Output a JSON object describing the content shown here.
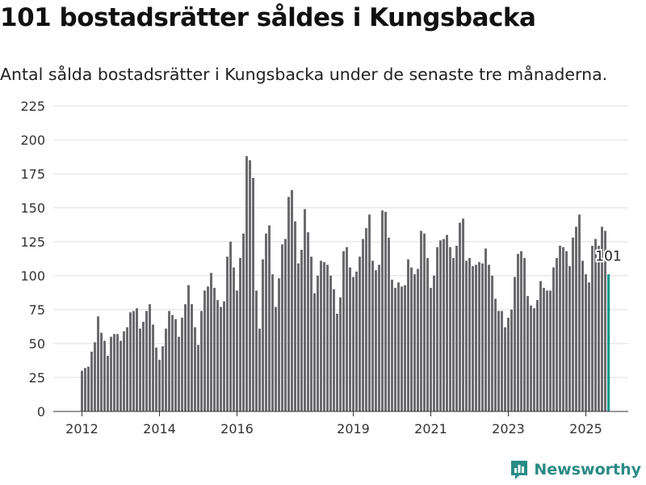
{
  "header": {
    "title": "101 bostadsrätter såldes i Kungsbacka",
    "subtitle": "Antal sålda bostadsrätter i Kungsbacka under de senaste tre månaderna."
  },
  "brand": {
    "name": "Newsworthy",
    "icon": "newsworthy-logo-icon",
    "color": "#2a8a86"
  },
  "colors": {
    "bar": "#6b6b6e",
    "highlight": "#1a9a8c",
    "grid": "#dddddd"
  },
  "chart_data": {
    "type": "bar",
    "title": "",
    "xlabel": "",
    "ylabel": "",
    "ylim": [
      0,
      225
    ],
    "yticks": [
      "0",
      "25",
      "50",
      "75",
      "100",
      "125",
      "150",
      "175",
      "200",
      "225"
    ],
    "xticks": [
      {
        "label": "2012",
        "index": 0
      },
      {
        "label": "2014",
        "index": 24
      },
      {
        "label": "2016",
        "index": 48
      },
      {
        "label": "2019",
        "index": 84
      },
      {
        "label": "2021",
        "index": 108
      },
      {
        "label": "2023",
        "index": 132
      },
      {
        "label": "2025",
        "index": 156
      }
    ],
    "grid": true,
    "highlight_label": "101",
    "values": [
      30,
      32,
      33,
      44,
      51,
      70,
      58,
      52,
      41,
      55,
      57,
      57,
      52,
      59,
      62,
      73,
      74,
      76,
      61,
      66,
      74,
      79,
      64,
      47,
      38,
      48,
      61,
      74,
      71,
      68,
      55,
      69,
      79,
      93,
      79,
      62,
      49,
      74,
      89,
      92,
      102,
      91,
      82,
      77,
      81,
      114,
      125,
      106,
      89,
      113,
      131,
      188,
      185,
      172,
      89,
      61,
      112,
      131,
      137,
      101,
      77,
      98,
      123,
      127,
      158,
      163,
      140,
      109,
      119,
      149,
      132,
      114,
      87,
      100,
      111,
      110,
      108,
      100,
      90,
      72,
      84,
      118,
      121,
      106,
      99,
      103,
      114,
      127,
      135,
      145,
      111,
      104,
      108,
      148,
      147,
      128,
      97,
      91,
      95,
      92,
      93,
      112,
      106,
      101,
      105,
      133,
      131,
      113,
      91,
      100,
      121,
      126,
      127,
      130,
      121,
      113,
      122,
      139,
      142,
      111,
      113,
      107,
      108,
      110,
      109,
      120,
      108,
      100,
      83,
      74,
      74,
      62,
      69,
      75,
      99,
      116,
      118,
      113,
      85,
      78,
      76,
      82,
      96,
      91,
      89,
      89,
      106,
      113,
      122,
      121,
      118,
      107,
      128,
      136,
      145,
      111,
      101,
      95,
      122,
      127,
      122,
      136,
      133,
      101
    ]
  }
}
